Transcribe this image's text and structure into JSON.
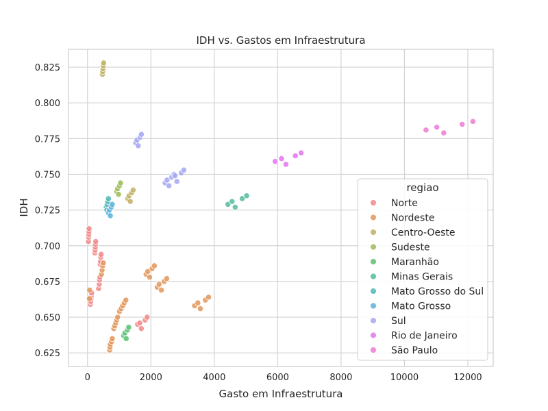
{
  "chart_data": {
    "type": "scatter",
    "title": "IDH vs. Gastos em Infraestrutura",
    "xlabel": "Gasto em Infraestrutura",
    "ylabel": "IDH",
    "xlim": [
      -600,
      12800
    ],
    "ylim": [
      0.6155,
      0.8375
    ],
    "xticks": [
      0,
      2000,
      4000,
      6000,
      8000,
      10000,
      12000
    ],
    "yticks": [
      0.625,
      0.65,
      0.675,
      0.7,
      0.725,
      0.75,
      0.775,
      0.8,
      0.825
    ],
    "xtick_labels": [
      "0",
      "2000",
      "4000",
      "6000",
      "8000",
      "10000",
      "12000"
    ],
    "ytick_labels": [
      "0.625",
      "0.650",
      "0.675",
      "0.700",
      "0.725",
      "0.750",
      "0.775",
      "0.800",
      "0.825"
    ],
    "grid": true,
    "legend": {
      "title": "regiao",
      "position": "lower-right"
    },
    "series": [
      {
        "name": "Norte",
        "color": "#f08a8a",
        "points": [
          [
            30,
            0.703
          ],
          [
            35,
            0.706
          ],
          [
            40,
            0.708
          ],
          [
            45,
            0.71
          ],
          [
            50,
            0.712
          ],
          [
            230,
            0.695
          ],
          [
            240,
            0.697
          ],
          [
            245,
            0.699
          ],
          [
            250,
            0.701
          ],
          [
            260,
            0.703
          ],
          [
            350,
            0.67
          ],
          [
            370,
            0.673
          ],
          [
            380,
            0.676
          ],
          [
            390,
            0.678
          ],
          [
            400,
            0.687
          ],
          [
            410,
            0.689
          ],
          [
            420,
            0.692
          ],
          [
            430,
            0.694
          ],
          [
            90,
            0.659
          ],
          [
            100,
            0.661
          ],
          [
            110,
            0.663
          ],
          [
            120,
            0.665
          ],
          [
            130,
            0.667
          ],
          [
            1580,
            0.645
          ],
          [
            1650,
            0.646
          ],
          [
            1700,
            0.642
          ],
          [
            1820,
            0.648
          ],
          [
            1880,
            0.65
          ]
        ]
      },
      {
        "name": "Nordeste",
        "color": "#e2975a",
        "points": [
          [
            60,
            0.663
          ],
          [
            65,
            0.669
          ],
          [
            440,
            0.68
          ],
          [
            460,
            0.683
          ],
          [
            480,
            0.686
          ],
          [
            500,
            0.688
          ],
          [
            700,
            0.627
          ],
          [
            710,
            0.629
          ],
          [
            720,
            0.631
          ],
          [
            760,
            0.633
          ],
          [
            780,
            0.635
          ],
          [
            830,
            0.642
          ],
          [
            860,
            0.644
          ],
          [
            890,
            0.646
          ],
          [
            920,
            0.648
          ],
          [
            950,
            0.65
          ],
          [
            1010,
            0.654
          ],
          [
            1060,
            0.656
          ],
          [
            1110,
            0.658
          ],
          [
            1160,
            0.66
          ],
          [
            1210,
            0.662
          ],
          [
            1850,
            0.68
          ],
          [
            1900,
            0.682
          ],
          [
            1960,
            0.678
          ],
          [
            2040,
            0.684
          ],
          [
            2110,
            0.686
          ],
          [
            2200,
            0.671
          ],
          [
            2260,
            0.673
          ],
          [
            2330,
            0.669
          ],
          [
            2420,
            0.675
          ],
          [
            2500,
            0.677
          ],
          [
            3380,
            0.658
          ],
          [
            3480,
            0.66
          ],
          [
            3560,
            0.656
          ],
          [
            3720,
            0.662
          ],
          [
            3820,
            0.664
          ]
        ]
      },
      {
        "name": "Centro-Oeste",
        "color": "#c0b064",
        "points": [
          [
            470,
            0.82
          ],
          [
            480,
            0.822
          ],
          [
            490,
            0.824
          ],
          [
            500,
            0.826
          ],
          [
            510,
            0.828
          ],
          [
            1270,
            0.733
          ],
          [
            1310,
            0.735
          ],
          [
            1350,
            0.731
          ],
          [
            1390,
            0.737
          ],
          [
            1440,
            0.739
          ]
        ]
      },
      {
        "name": "Sudeste",
        "color": "#9cbc58",
        "points": [
          [
            920,
            0.738
          ],
          [
            950,
            0.74
          ],
          [
            980,
            0.736
          ],
          [
            1010,
            0.742
          ],
          [
            1040,
            0.744
          ]
        ]
      },
      {
        "name": "Maranhão",
        "color": "#5cbf74",
        "points": [
          [
            1140,
            0.637
          ],
          [
            1180,
            0.639
          ],
          [
            1220,
            0.635
          ],
          [
            1260,
            0.641
          ],
          [
            1300,
            0.643
          ]
        ]
      },
      {
        "name": "Minas Gerais",
        "color": "#52bc9c",
        "points": [
          [
            4430,
            0.729
          ],
          [
            4560,
            0.731
          ],
          [
            4660,
            0.727
          ],
          [
            4880,
            0.733
          ],
          [
            5020,
            0.735
          ]
        ]
      },
      {
        "name": "Mato Grosso do Sul",
        "color": "#52b6b6",
        "points": [
          [
            590,
            0.727
          ],
          [
            620,
            0.729
          ],
          [
            640,
            0.731
          ],
          [
            660,
            0.733
          ],
          [
            610,
            0.725
          ]
        ]
      },
      {
        "name": "Mato Grosso",
        "color": "#5ab1dc",
        "points": [
          [
            660,
            0.723
          ],
          [
            690,
            0.725
          ],
          [
            720,
            0.721
          ],
          [
            750,
            0.727
          ],
          [
            780,
            0.729
          ]
        ]
      },
      {
        "name": "Sul",
        "color": "#a6a6f2",
        "points": [
          [
            1520,
            0.772
          ],
          [
            1560,
            0.774
          ],
          [
            1600,
            0.77
          ],
          [
            1660,
            0.776
          ],
          [
            1700,
            0.778
          ],
          [
            2450,
            0.744
          ],
          [
            2510,
            0.746
          ],
          [
            2570,
            0.742
          ],
          [
            2660,
            0.748
          ],
          [
            2730,
            0.75
          ],
          [
            2760,
            0.749
          ],
          [
            2820,
            0.745
          ],
          [
            2960,
            0.751
          ],
          [
            3040,
            0.753
          ]
        ]
      },
      {
        "name": "Rio de Janeiro",
        "color": "#e276f0",
        "points": [
          [
            5920,
            0.759
          ],
          [
            6120,
            0.761
          ],
          [
            6260,
            0.757
          ],
          [
            6560,
            0.763
          ],
          [
            6740,
            0.765
          ]
        ]
      },
      {
        "name": "São Paulo",
        "color": "#f07ad2",
        "points": [
          [
            10680,
            0.781
          ],
          [
            11020,
            0.783
          ],
          [
            11240,
            0.779
          ],
          [
            11820,
            0.785
          ],
          [
            12160,
            0.787
          ]
        ]
      }
    ]
  }
}
